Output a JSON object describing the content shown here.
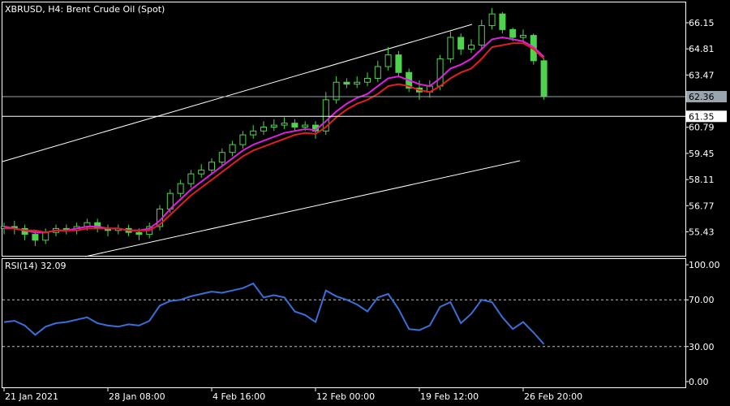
{
  "chart_data": [
    {
      "type": "ohlc",
      "title": "XBRUSD, H4:  Brent Crude Oil (Spot)",
      "categories": [
        "21 Jan 2021",
        null,
        null,
        null,
        null,
        null,
        null,
        null,
        null,
        null,
        "28 Jan 08:00",
        null,
        null,
        null,
        null,
        null,
        null,
        null,
        null,
        null,
        "4 Feb 16:00",
        null,
        null,
        null,
        null,
        null,
        null,
        null,
        null,
        null,
        "12 Feb 00:00",
        null,
        null,
        null,
        null,
        null,
        null,
        null,
        null,
        null,
        "19 Feb 12:00",
        null,
        null,
        null,
        null,
        null,
        null,
        null,
        null,
        null,
        "26 Feb 20:00",
        null,
        null
      ],
      "open": [
        55.6,
        55.7,
        55.6,
        55.3,
        55.0,
        55.4,
        55.6,
        55.5,
        55.7,
        55.9,
        55.6,
        55.5,
        55.6,
        55.4,
        55.3,
        55.7,
        56.6,
        57.4,
        57.9,
        58.4,
        58.6,
        59.0,
        59.5,
        59.9,
        60.4,
        60.6,
        60.8,
        60.9,
        61.0,
        60.8,
        60.9,
        60.6,
        62.2,
        63.1,
        63.0,
        63.1,
        63.3,
        63.9,
        64.5,
        63.6,
        62.8,
        62.6,
        62.9,
        64.3,
        65.4,
        64.8,
        65.0,
        66.0,
        66.6,
        65.8,
        65.4,
        65.5,
        64.2
      ],
      "high": [
        55.9,
        56.0,
        55.8,
        55.5,
        55.6,
        55.8,
        55.8,
        55.9,
        56.1,
        56.1,
        55.8,
        55.8,
        55.8,
        55.6,
        55.9,
        56.8,
        57.6,
        58.1,
        58.6,
        58.9,
        59.2,
        59.7,
        60.1,
        60.6,
        60.9,
        61.1,
        61.2,
        61.3,
        61.2,
        61.1,
        61.1,
        62.6,
        63.4,
        63.3,
        63.4,
        63.6,
        64.2,
        64.9,
        64.7,
        63.8,
        63.2,
        63.2,
        64.5,
        65.7,
        65.6,
        65.3,
        66.3,
        66.9,
        66.7,
        65.9,
        65.8,
        65.6,
        64.3
      ],
      "low": [
        55.3,
        55.3,
        55.0,
        54.7,
        54.8,
        55.2,
        55.3,
        55.3,
        55.5,
        55.4,
        55.2,
        55.3,
        55.2,
        55.0,
        55.1,
        55.5,
        56.4,
        57.2,
        57.7,
        58.2,
        58.4,
        58.8,
        59.3,
        59.7,
        60.2,
        60.4,
        60.6,
        60.7,
        60.6,
        60.6,
        60.2,
        60.4,
        62.0,
        62.8,
        62.8,
        62.9,
        63.1,
        63.7,
        63.4,
        62.6,
        62.2,
        62.3,
        62.7,
        64.1,
        64.5,
        64.6,
        64.8,
        65.8,
        65.6,
        65.2,
        65.1,
        64.0,
        62.2
      ],
      "close": [
        55.7,
        55.6,
        55.3,
        55.0,
        55.4,
        55.6,
        55.5,
        55.7,
        55.9,
        55.6,
        55.5,
        55.6,
        55.4,
        55.3,
        55.7,
        56.6,
        57.4,
        57.9,
        58.4,
        58.6,
        59.0,
        59.5,
        59.9,
        60.4,
        60.6,
        60.8,
        60.9,
        61.0,
        60.8,
        60.9,
        60.6,
        62.2,
        63.1,
        63.0,
        63.1,
        63.3,
        63.9,
        64.5,
        63.6,
        62.8,
        62.6,
        62.9,
        64.3,
        65.4,
        64.8,
        65.0,
        66.0,
        66.6,
        65.8,
        65.4,
        65.5,
        64.2,
        62.36
      ],
      "color": "#4fd34f",
      "series": [
        {
          "color": "#e020e0",
          "values": [
            55.7,
            55.6,
            55.5,
            55.4,
            55.4,
            55.5,
            55.5,
            55.6,
            55.7,
            55.7,
            55.6,
            55.6,
            55.5,
            55.5,
            55.6,
            56.0,
            56.6,
            57.1,
            57.6,
            58.0,
            58.4,
            58.8,
            59.2,
            59.6,
            59.9,
            60.1,
            60.3,
            60.5,
            60.6,
            60.7,
            60.65,
            61.1,
            61.6,
            62.0,
            62.3,
            62.5,
            62.9,
            63.3,
            63.4,
            63.2,
            63.0,
            62.9,
            63.3,
            63.8,
            64.0,
            64.3,
            64.8,
            65.3,
            65.4,
            65.3,
            65.2,
            64.9,
            64.4
          ]
        },
        {
          "color": "#e02020",
          "values": [
            55.6,
            55.6,
            55.5,
            55.5,
            55.4,
            55.5,
            55.5,
            55.5,
            55.6,
            55.6,
            55.6,
            55.6,
            55.5,
            55.5,
            55.5,
            55.8,
            56.3,
            56.8,
            57.3,
            57.7,
            58.1,
            58.5,
            58.9,
            59.3,
            59.6,
            59.8,
            60.0,
            60.2,
            60.4,
            60.5,
            60.45,
            60.8,
            61.3,
            61.7,
            62.0,
            62.2,
            62.5,
            62.9,
            63.0,
            62.9,
            62.7,
            62.6,
            62.9,
            63.3,
            63.6,
            63.8,
            64.3,
            64.9,
            65.0,
            65.1,
            65.1,
            64.8,
            64.3
          ]
        }
      ],
      "price_lines": [
        {
          "value": 62.36,
          "color": "#9aa4ae"
        },
        {
          "value": 61.35,
          "color": "#ffffff"
        }
      ],
      "ylim": [
        54.16,
        67.19
      ],
      "yticks": [
        55.43,
        56.77,
        58.11,
        59.45,
        60.79,
        63.47,
        64.81,
        66.15
      ]
    },
    {
      "type": "line",
      "title": "RSI(14) 32.09",
      "values": [
        51,
        52,
        48,
        40,
        47,
        50,
        51,
        53,
        55,
        50,
        48,
        47,
        49,
        48,
        52,
        65,
        69,
        70,
        73,
        75,
        77,
        76,
        78,
        80,
        84,
        72,
        74,
        72,
        60,
        57,
        51,
        78,
        73,
        70,
        66,
        60,
        72,
        75,
        62,
        45,
        44,
        48,
        64,
        68,
        50,
        58,
        70,
        68,
        55,
        45,
        51,
        42,
        32.09
      ],
      "color": "#3a6fd8",
      "levels": [
        30,
        70
      ],
      "ylim": [
        -4.9,
        104.9
      ],
      "yticks": [
        {
          "value": 0,
          "label": "0.00"
        },
        {
          "value": 30,
          "label": "30.00"
        },
        {
          "value": 70,
          "label": "70.00"
        },
        {
          "value": 100,
          "label": "100.00"
        }
      ]
    }
  ]
}
